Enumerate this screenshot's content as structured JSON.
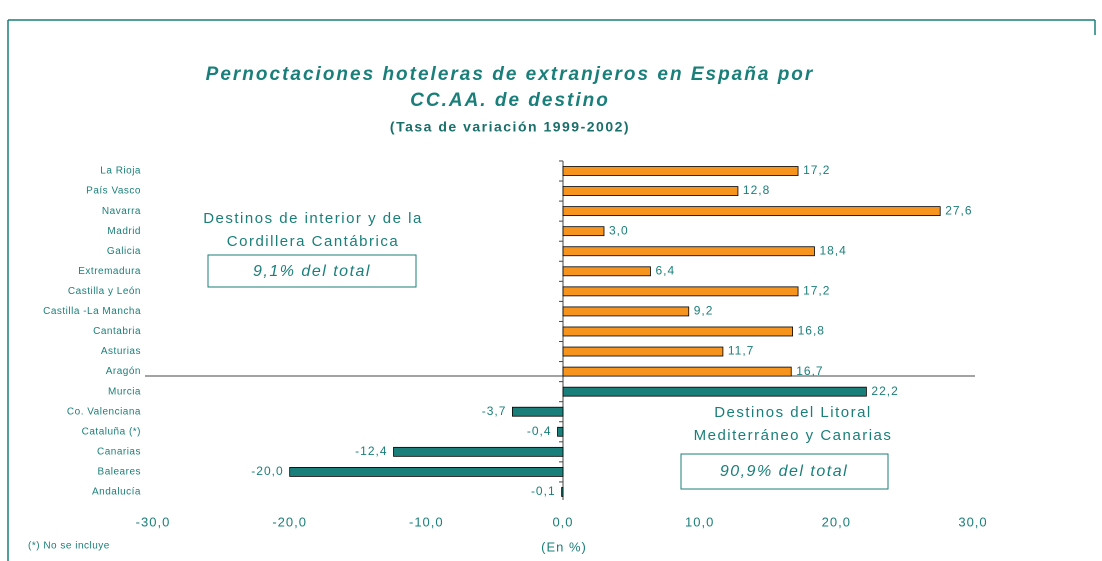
{
  "chart_data": {
    "type": "hbar",
    "title": [
      "Pernoctaciones hoteleras de extranjeros en España por",
      "CC.AA. de destino"
    ],
    "subtitle": "(Tasa de variación 1999-2002)",
    "x_label": "(En %)",
    "footnote": "(*) No se incluye",
    "categories": [
      "La Rioja",
      "País Vasco",
      "Navarra",
      "Madrid",
      "Galicia",
      "Extremadura",
      "Castilla y León",
      "Castilla -La Mancha",
      "Cantabria",
      "Asturias",
      "Aragón",
      "Murcia",
      "Co. Valenciana",
      "Cataluña (*)",
      "Canarias",
      "Baleares",
      "Andalucía"
    ],
    "values": [
      17.2,
      12.8,
      27.6,
      3.0,
      18.4,
      6.4,
      17.2,
      9.2,
      16.8,
      11.7,
      16.7,
      22.2,
      -3.7,
      -0.4,
      -12.4,
      -20.0,
      -0.1
    ],
    "value_labels": [
      "17,2",
      "12,8",
      "27,6",
      "3,0",
      "18,4",
      "6,4",
      "17,2",
      "9,2",
      "16,8",
      "11,7",
      "16,7",
      "22,2",
      "-3,7",
      "-0,4",
      "-12,4",
      "-20,0",
      "-0,1"
    ],
    "colors": [
      "#f7941d",
      "#f7941d",
      "#f7941d",
      "#f7941d",
      "#f7941d",
      "#f7941d",
      "#f7941d",
      "#f7941d",
      "#f7941d",
      "#f7941d",
      "#f7941d",
      "#1a7f7a",
      "#1a7f7a",
      "#1a7f7a",
      "#1a7f7a",
      "#1a7f7a",
      "#1a7f7a"
    ],
    "xlim": [
      -30,
      30
    ],
    "xticks": [
      {
        "value": -30,
        "label": "-30,0"
      },
      {
        "value": -20,
        "label": "-20,0"
      },
      {
        "value": -10,
        "label": "-10,0"
      },
      {
        "value": 0,
        "label": "0,0"
      },
      {
        "value": 10,
        "label": "10,0"
      },
      {
        "value": 20,
        "label": "20,0"
      },
      {
        "value": 30,
        "label": "30,0"
      }
    ],
    "annotations": [
      {
        "lines": [
          "Destinos de interior y de la",
          "Cordillera Cantábrica"
        ],
        "box": "9,1% del total"
      },
      {
        "lines": [
          "Destinos del Litoral",
          "Mediterráneo y Canarias"
        ],
        "box": "90,9% del total"
      }
    ]
  }
}
